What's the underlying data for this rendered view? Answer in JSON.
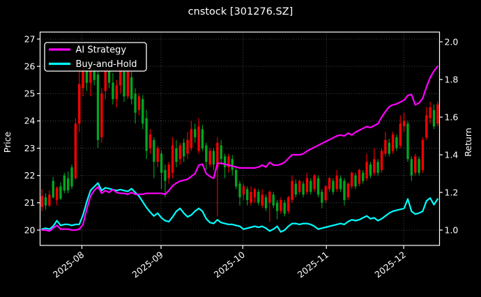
{
  "title": "cnstock [301276.SZ]",
  "legend": {
    "items": [
      {
        "label": "AI Strategy",
        "color": "#ff00ff"
      },
      {
        "label": "Buy-and-Hold",
        "color": "#00ffff"
      }
    ]
  },
  "colors": {
    "background": "#000000",
    "text": "#ffffff",
    "grid": "#ffffff",
    "spine": "#ffffff",
    "candle_up": "#ff0000",
    "candle_down": "#00a820",
    "ai_strategy": "#ff00ff",
    "buy_and_hold": "#00ffff"
  },
  "chart_data": {
    "type": "candlestick+line",
    "title": "cnstock [301276.SZ]",
    "ylabel_left": "Price",
    "ylabel_right": "Return",
    "ylim_price": [
      19.44,
      27.26
    ],
    "ylim_return": [
      0.919,
      2.052
    ],
    "grid": true,
    "legend_position": "upper-left",
    "price_ticks": [
      20,
      21,
      22,
      23,
      24,
      25,
      26,
      27
    ],
    "return_ticks": [
      1.0,
      1.2,
      1.4,
      1.6,
      1.8,
      2.0
    ],
    "x_ticks": [
      {
        "label": "2025-08",
        "pos": 10.7
      },
      {
        "label": "2025-09",
        "pos": 31.9
      },
      {
        "label": "2025-10",
        "pos": 53.8
      },
      {
        "label": "2025-11",
        "pos": 76.2
      },
      {
        "label": "2025-12",
        "pos": 96.9
      }
    ],
    "candles_format": [
      "open",
      "high",
      "low",
      "close"
    ],
    "candles": [
      [
        20.85,
        21.5,
        20.7,
        21.25
      ],
      [
        21.2,
        21.35,
        20.75,
        20.9
      ],
      [
        20.9,
        21.45,
        20.85,
        21.3
      ],
      [
        21.8,
        21.95,
        21.15,
        21.2
      ],
      [
        21.1,
        21.6,
        20.9,
        21.55
      ],
      [
        21.6,
        21.75,
        21.1,
        21.15
      ],
      [
        22.0,
        22.1,
        21.35,
        21.45
      ],
      [
        21.9,
        22.15,
        21.35,
        21.45
      ],
      [
        22.3,
        22.4,
        21.5,
        21.6
      ],
      [
        21.9,
        24.1,
        21.85,
        23.9
      ],
      [
        23.9,
        25.9,
        23.6,
        25.35
      ],
      [
        25.2,
        26.4,
        24.9,
        26.0
      ],
      [
        26.0,
        26.5,
        25.1,
        25.4
      ],
      [
        25.4,
        26.2,
        24.9,
        26.0
      ],
      [
        25.9,
        26.55,
        25.3,
        25.5
      ],
      [
        25.7,
        25.9,
        23.0,
        23.3
      ],
      [
        23.4,
        25.2,
        23.2,
        25.0
      ],
      [
        25.1,
        26.0,
        24.8,
        25.9
      ],
      [
        25.9,
        26.3,
        25.2,
        25.4
      ],
      [
        25.4,
        25.75,
        24.6,
        24.8
      ],
      [
        24.8,
        25.5,
        24.5,
        25.3
      ],
      [
        25.3,
        26.1,
        25.0,
        25.9
      ],
      [
        25.8,
        26.0,
        24.7,
        24.9
      ],
      [
        24.9,
        26.2,
        24.8,
        25.8
      ],
      [
        25.6,
        25.8,
        24.6,
        24.8
      ],
      [
        25.0,
        25.2,
        23.9,
        24.3
      ],
      [
        24.4,
        25.0,
        24.2,
        24.9
      ],
      [
        24.8,
        24.95,
        23.7,
        23.9
      ],
      [
        24.1,
        24.4,
        22.6,
        22.9
      ],
      [
        23.0,
        23.7,
        22.8,
        23.5
      ],
      [
        23.3,
        23.4,
        21.9,
        22.5
      ],
      [
        22.5,
        23.1,
        22.3,
        23.0
      ],
      [
        22.8,
        22.9,
        21.5,
        22.1
      ],
      [
        22.2,
        22.4,
        21.2,
        21.8
      ],
      [
        21.9,
        22.5,
        21.7,
        22.4
      ],
      [
        22.1,
        23.4,
        21.9,
        23.1
      ],
      [
        23.0,
        23.3,
        22.3,
        22.5
      ],
      [
        22.6,
        23.2,
        22.4,
        23.1
      ],
      [
        23.2,
        23.35,
        22.5,
        22.7
      ],
      [
        22.8,
        23.6,
        22.6,
        23.3
      ],
      [
        23.0,
        24.0,
        22.9,
        23.7
      ],
      [
        23.7,
        23.9,
        23.2,
        23.4
      ],
      [
        22.9,
        24.1,
        22.8,
        23.8
      ],
      [
        23.7,
        23.85,
        22.9,
        23.0
      ],
      [
        23.1,
        23.2,
        22.2,
        22.5
      ],
      [
        22.4,
        23.0,
        22.3,
        22.9
      ],
      [
        22.9,
        23.0,
        22.2,
        22.4
      ],
      [
        22.3,
        23.4,
        20.5,
        23.2
      ],
      [
        23.1,
        23.3,
        22.4,
        22.6
      ],
      [
        22.7,
        22.8,
        21.9,
        22.3
      ],
      [
        22.3,
        22.8,
        22.1,
        22.7
      ],
      [
        22.6,
        22.75,
        22.0,
        22.2
      ],
      [
        22.2,
        22.35,
        21.5,
        21.6
      ],
      [
        21.7,
        21.8,
        20.9,
        21.2
      ],
      [
        21.3,
        21.7,
        21.1,
        21.6
      ],
      [
        21.5,
        21.6,
        20.9,
        21.1
      ],
      [
        21.0,
        21.6,
        20.9,
        21.4
      ],
      [
        21.2,
        21.55,
        21.0,
        21.5
      ],
      [
        21.4,
        21.5,
        20.9,
        21.0
      ],
      [
        20.9,
        21.5,
        20.8,
        21.3
      ],
      [
        21.2,
        21.3,
        20.7,
        20.8
      ],
      [
        21.0,
        21.45,
        20.3,
        21.4
      ],
      [
        21.3,
        21.4,
        20.8,
        20.9
      ],
      [
        21.0,
        21.1,
        20.4,
        20.7
      ],
      [
        20.7,
        21.2,
        20.6,
        21.1
      ],
      [
        21.0,
        21.1,
        20.5,
        20.6
      ],
      [
        20.7,
        21.25,
        20.6,
        21.2
      ],
      [
        21.1,
        22.0,
        21.0,
        21.8
      ],
      [
        21.7,
        21.85,
        21.2,
        21.3
      ],
      [
        21.4,
        21.85,
        21.3,
        21.8
      ],
      [
        21.7,
        21.8,
        21.2,
        21.3
      ],
      [
        21.4,
        22.1,
        21.3,
        21.9
      ],
      [
        21.8,
        21.9,
        21.3,
        21.4
      ],
      [
        21.5,
        22.05,
        21.4,
        22.0
      ],
      [
        21.9,
        22.0,
        21.2,
        21.3
      ],
      [
        21.4,
        21.5,
        20.8,
        21.0
      ],
      [
        21.1,
        21.65,
        21.0,
        21.6
      ],
      [
        21.5,
        21.95,
        21.4,
        21.9
      ],
      [
        21.8,
        21.9,
        21.3,
        21.4
      ],
      [
        21.5,
        22.2,
        21.4,
        22.0
      ],
      [
        21.9,
        22.0,
        21.4,
        21.5
      ],
      [
        21.8,
        21.9,
        20.9,
        21.1
      ],
      [
        21.2,
        21.75,
        21.1,
        21.7
      ],
      [
        21.6,
        22.15,
        21.5,
        22.1
      ],
      [
        22.0,
        22.1,
        21.5,
        21.6
      ],
      [
        21.7,
        22.25,
        21.6,
        22.2
      ],
      [
        22.1,
        22.2,
        21.7,
        21.8
      ],
      [
        21.9,
        22.8,
        21.8,
        22.5
      ],
      [
        22.4,
        22.5,
        21.9,
        22.0
      ],
      [
        22.1,
        23.0,
        22.0,
        22.6
      ],
      [
        22.5,
        22.6,
        22.0,
        22.1
      ],
      [
        22.2,
        23.0,
        22.1,
        22.9
      ],
      [
        22.8,
        23.6,
        22.7,
        23.3
      ],
      [
        23.2,
        23.35,
        22.7,
        22.8
      ],
      [
        22.9,
        23.6,
        22.8,
        23.5
      ],
      [
        23.4,
        23.5,
        22.9,
        23.0
      ],
      [
        23.1,
        24.2,
        23.0,
        23.9
      ],
      [
        23.8,
        24.3,
        23.6,
        24.0
      ],
      [
        23.9,
        24.0,
        22.5,
        22.6
      ],
      [
        22.6,
        22.7,
        21.8,
        22.0
      ],
      [
        22.1,
        22.8,
        22.0,
        22.7
      ],
      [
        22.6,
        22.7,
        22.0,
        22.1
      ],
      [
        22.2,
        23.4,
        22.1,
        23.3
      ],
      [
        23.4,
        24.5,
        23.3,
        24.2
      ],
      [
        24.1,
        24.7,
        23.9,
        24.5
      ],
      [
        24.4,
        24.6,
        23.7,
        23.8
      ],
      [
        23.9,
        24.7,
        23.8,
        24.6
      ]
    ],
    "series": [
      {
        "name": "AI Strategy",
        "color": "#ff00ff",
        "axis": "return",
        "values": [
          1.0,
          1.0,
          0.995,
          1.01,
          1.025,
          1.005,
          1.005,
          1.005,
          1.0,
          1.0,
          1.005,
          1.03,
          1.11,
          1.18,
          1.21,
          1.23,
          1.195,
          1.21,
          1.2,
          1.215,
          1.2,
          1.195,
          1.195,
          1.19,
          1.2,
          1.19,
          1.19,
          1.19,
          1.195,
          1.195,
          1.195,
          1.195,
          1.195,
          1.19,
          1.21,
          1.235,
          1.25,
          1.26,
          1.265,
          1.27,
          1.285,
          1.3,
          1.345,
          1.35,
          1.3,
          1.285,
          1.275,
          1.355,
          1.355,
          1.35,
          1.345,
          1.34,
          1.335,
          1.33,
          1.33,
          1.33,
          1.33,
          1.33,
          1.335,
          1.345,
          1.335,
          1.36,
          1.345,
          1.345,
          1.35,
          1.36,
          1.38,
          1.4,
          1.4,
          1.4,
          1.405,
          1.42,
          1.43,
          1.44,
          1.45,
          1.46,
          1.47,
          1.48,
          1.49,
          1.5,
          1.505,
          1.5,
          1.515,
          1.505,
          1.52,
          1.53,
          1.54,
          1.55,
          1.545,
          1.555,
          1.565,
          1.6,
          1.63,
          1.655,
          1.665,
          1.67,
          1.68,
          1.69,
          1.715,
          1.72,
          1.665,
          1.675,
          1.7,
          1.76,
          1.81,
          1.845,
          1.87
        ]
      },
      {
        "name": "Buy-and-Hold",
        "color": "#00ffff",
        "axis": "return",
        "values": [
          1.005,
          1.01,
          1.005,
          1.02,
          1.05,
          1.025,
          1.03,
          1.03,
          1.025,
          1.03,
          1.03,
          1.08,
          1.15,
          1.21,
          1.23,
          1.25,
          1.21,
          1.225,
          1.22,
          1.215,
          1.21,
          1.215,
          1.21,
          1.205,
          1.22,
          1.2,
          1.18,
          1.15,
          1.12,
          1.095,
          1.075,
          1.09,
          1.065,
          1.05,
          1.045,
          1.07,
          1.1,
          1.115,
          1.09,
          1.07,
          1.08,
          1.1,
          1.115,
          1.1,
          1.06,
          1.04,
          1.035,
          1.055,
          1.04,
          1.035,
          1.03,
          1.03,
          1.025,
          1.02,
          1.005,
          1.01,
          1.015,
          1.02,
          1.015,
          1.02,
          1.01,
          0.995,
          1.005,
          1.02,
          0.99,
          1.0,
          1.02,
          1.035,
          1.035,
          1.03,
          1.035,
          1.035,
          1.03,
          1.02,
          1.005,
          1.01,
          1.015,
          1.02,
          1.025,
          1.03,
          1.035,
          1.03,
          1.045,
          1.055,
          1.05,
          1.055,
          1.065,
          1.075,
          1.06,
          1.065,
          1.05,
          1.06,
          1.075,
          1.09,
          1.1,
          1.105,
          1.11,
          1.115,
          1.165,
          1.1,
          1.085,
          1.09,
          1.1,
          1.155,
          1.17,
          1.135,
          1.165
        ]
      }
    ]
  }
}
